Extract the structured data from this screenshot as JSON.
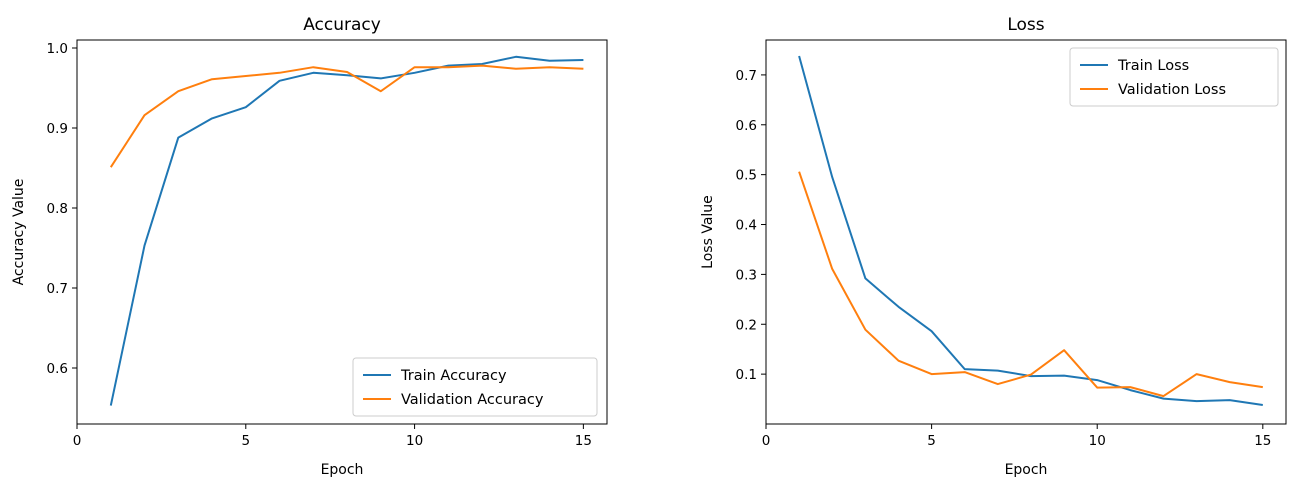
{
  "chart_data": [
    {
      "type": "line",
      "title": "Accuracy",
      "xlabel": "Epoch",
      "ylabel": "Accuracy Value",
      "xlim": [
        0,
        15.7
      ],
      "ylim": [
        0.53,
        1.01
      ],
      "xticks": [
        0,
        5,
        10,
        15
      ],
      "yticks": [
        0.6,
        0.7,
        0.8,
        0.9,
        1.0
      ],
      "grid": false,
      "legend_position": "lower-right",
      "x": [
        1,
        2,
        3,
        4,
        5,
        6,
        7,
        8,
        9,
        10,
        11,
        12,
        13,
        14,
        15
      ],
      "series": [
        {
          "name": "Train Accuracy",
          "color": "#1f77b4",
          "values": [
            0.553,
            0.753,
            0.888,
            0.912,
            0.926,
            0.959,
            0.969,
            0.966,
            0.962,
            0.969,
            0.978,
            0.98,
            0.989,
            0.984,
            0.985
          ]
        },
        {
          "name": "Validation Accuracy",
          "color": "#ff7f0e",
          "values": [
            0.851,
            0.916,
            0.946,
            0.961,
            0.965,
            0.969,
            0.976,
            0.97,
            0.946,
            0.976,
            0.976,
            0.978,
            0.974,
            0.976,
            0.974
          ]
        }
      ]
    },
    {
      "type": "line",
      "title": "Loss",
      "xlabel": "Epoch",
      "ylabel": "Loss Value",
      "xlim": [
        0,
        15.7
      ],
      "ylim": [
        0.0,
        0.77
      ],
      "xticks": [
        0,
        5,
        10,
        15
      ],
      "yticks": [
        0.1,
        0.2,
        0.3,
        0.4,
        0.5,
        0.6,
        0.7
      ],
      "grid": false,
      "legend_position": "upper-right",
      "x": [
        1,
        2,
        3,
        4,
        5,
        6,
        7,
        8,
        9,
        10,
        11,
        12,
        13,
        14,
        15
      ],
      "series": [
        {
          "name": "Train Loss",
          "color": "#1f77b4",
          "values": [
            0.738,
            0.495,
            0.292,
            0.235,
            0.186,
            0.11,
            0.107,
            0.096,
            0.097,
            0.088,
            0.068,
            0.051,
            0.046,
            0.048,
            0.038
          ]
        },
        {
          "name": "Validation Loss",
          "color": "#ff7f0e",
          "values": [
            0.506,
            0.311,
            0.189,
            0.127,
            0.1,
            0.104,
            0.08,
            0.099,
            0.148,
            0.073,
            0.074,
            0.056,
            0.1,
            0.084,
            0.074
          ]
        }
      ]
    }
  ]
}
